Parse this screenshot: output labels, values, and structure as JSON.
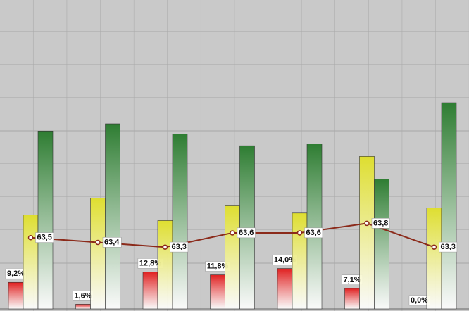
{
  "chart_data": {
    "type": "bar",
    "series": [
      {
        "name": null,
        "color": "#e02020",
        "values": [
          9.2,
          1.6,
          12.8,
          11.8,
          14.0,
          7.1,
          0.0
        ],
        "value_labels": [
          "9,2%",
          "1,6%",
          "12,8%",
          "11,8%",
          "14,0%",
          "7,1%",
          "0,0%"
        ]
      },
      {
        "name": null,
        "color": "#dede30",
        "values": [
          32.5,
          38.4,
          30.6,
          35.7,
          33.2,
          52.8,
          35.0
        ]
      },
      {
        "name": null,
        "color": "#2e7d32",
        "values": [
          61.6,
          64.1,
          60.6,
          56.5,
          57.2,
          45.0,
          71.4
        ]
      },
      {
        "name": null,
        "type": "line",
        "axis": "y2",
        "color": "#8b2a1a",
        "values": [
          63.5,
          63.4,
          63.3,
          63.6,
          63.6,
          63.8,
          63.3
        ],
        "value_labels": [
          "63,5",
          "63,4",
          "63,3",
          "63,6",
          "63,6",
          "63,8",
          "63,3"
        ]
      }
    ],
    "ylim": [
      0,
      107
    ],
    "y2lim": [
      62,
      68.5
    ],
    "grid": true
  }
}
